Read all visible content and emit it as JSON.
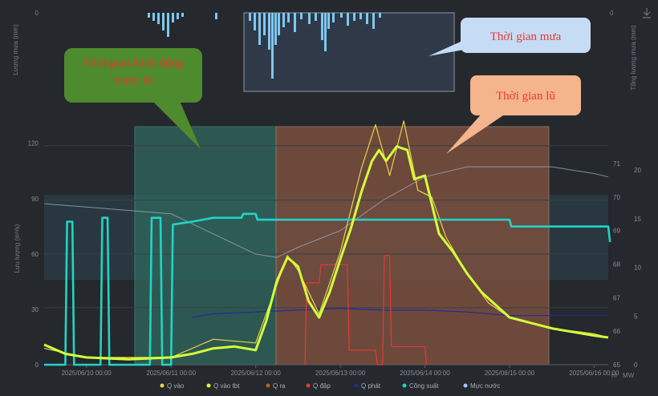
{
  "rain_axis": {
    "left_label": "Lượng mưa (mm)",
    "right_label": "Tổng lượng mưa (mm)",
    "left_ticks": [
      "0"
    ],
    "right_ticks": [
      "0"
    ]
  },
  "flow_axis": {
    "left_label": "Lưu lượng (m³/s)",
    "left_ticks": [
      "0",
      "30",
      "60",
      "90",
      "120"
    ],
    "mid_right_ticks": [
      "65",
      "66",
      "67",
      "68",
      "69",
      "70",
      "71"
    ],
    "right_ticks": [
      "0",
      "5",
      "10",
      "15",
      "20"
    ],
    "mw_label": "MW",
    "m_label": "m"
  },
  "x_ticks": [
    "2025/06/10 00:00",
    "2025/06/11 00:00",
    "2025/06/12 00:00",
    "2025/06/13 00:00",
    "2025/06/14 00:00",
    "2025/06/15 00:00",
    "2025/06/16 00:00"
  ],
  "legend": [
    {
      "label": "Q vào",
      "color": "#e8d44d"
    },
    {
      "label": "Q vào tbt",
      "color": "#d4ff3a"
    },
    {
      "label": "Q ra",
      "color": "#b5651d"
    },
    {
      "label": "Q đập",
      "color": "#e53935"
    },
    {
      "label": "Q phát",
      "color": "#1e2a9b"
    },
    {
      "label": "Công suất",
      "color": "#22d3c5"
    },
    {
      "label": "Mực nước",
      "color": "#a8c8f0"
    }
  ],
  "callouts": {
    "rain": "Thời gian mưa",
    "action": "Thời gian hành động trước lũ",
    "flood": "Thời gian lũ"
  },
  "colors": {
    "background": "#25282c",
    "rain_bars": "#7ec8f0",
    "action_zone": "#2f6b60",
    "flood_zone": "#7a4f3e",
    "callout_action": "#4e8a2e",
    "callout_rain": "#c6dcf4",
    "callout_flood": "#f4b48c"
  },
  "icons": [
    "download-icon"
  ],
  "chart_data": {
    "type": "line",
    "x_unit": "datetime",
    "xlim": [
      "2025/06/09 12:00",
      "2025/06/16 04:00"
    ],
    "ylim_flow": [
      0,
      130
    ],
    "ylim_water_level": [
      65,
      71.5
    ],
    "ylim_power": [
      0,
      21.5
    ],
    "action_period": [
      "2025/06/11 00:00",
      "2025/06/12 02:00"
    ],
    "flood_period": [
      "2025/06/12 02:00",
      "2025/06/15 00:00"
    ],
    "rain_period": [
      "2025/06/12 16:00",
      "2025/06/13 16:00"
    ],
    "series": [
      {
        "name": "Q vào tbt",
        "axis": "flow",
        "values": [
          [
            "2025/06/09 12:00",
            11
          ],
          [
            "2025/06/09 18:00",
            6
          ],
          [
            "2025/06/10 00:00",
            4
          ],
          [
            "2025/06/10 12:00",
            3
          ],
          [
            "2025/06/11 00:00",
            4
          ],
          [
            "2025/06/11 06:00",
            6
          ],
          [
            "2025/06/11 12:00",
            9
          ],
          [
            "2025/06/11 18:00",
            10
          ],
          [
            "2025/06/12 00:00",
            8
          ],
          [
            "2025/06/12 03:00",
            24
          ],
          [
            "2025/06/12 06:00",
            46
          ],
          [
            "2025/06/12 09:00",
            59
          ],
          [
            "2025/06/12 12:00",
            54
          ],
          [
            "2025/06/12 15:00",
            35
          ],
          [
            "2025/06/12 18:00",
            26
          ],
          [
            "2025/06/12 21:00",
            40
          ],
          [
            "2025/06/13 00:00",
            58
          ],
          [
            "2025/06/13 03:00",
            75
          ],
          [
            "2025/06/13 06:00",
            95
          ],
          [
            "2025/06/13 09:00",
            112
          ],
          [
            "2025/06/13 11:00",
            118
          ],
          [
            "2025/06/13 13:00",
            112
          ],
          [
            "2025/06/13 16:00",
            120
          ],
          [
            "2025/06/13 19:00",
            118
          ],
          [
            "2025/06/13 21:00",
            102
          ],
          [
            "2025/06/14 00:00",
            104
          ],
          [
            "2025/06/14 02:00",
            88
          ],
          [
            "2025/06/14 04:00",
            72
          ],
          [
            "2025/06/14 08:00",
            62
          ],
          [
            "2025/06/14 12:00",
            50
          ],
          [
            "2025/06/14 16:00",
            40
          ],
          [
            "2025/06/14 20:00",
            33
          ],
          [
            "2025/06/15 00:00",
            26
          ],
          [
            "2025/06/15 06:00",
            23
          ],
          [
            "2025/06/15 12:00",
            20
          ],
          [
            "2025/06/15 18:00",
            18
          ],
          [
            "2025/06/16 00:00",
            16
          ],
          [
            "2025/06/16 04:00",
            15
          ]
        ]
      },
      {
        "name": "Q vào",
        "axis": "flow",
        "values": [
          [
            "2025/06/09 12:00",
            9
          ],
          [
            "2025/06/10 00:00",
            4
          ],
          [
            "2025/06/11 00:00",
            4
          ],
          [
            "2025/06/11 12:00",
            14
          ],
          [
            "2025/06/12 00:00",
            12
          ],
          [
            "2025/06/12 06:00",
            44
          ],
          [
            "2025/06/12 09:00",
            60
          ],
          [
            "2025/06/12 12:00",
            52
          ],
          [
            "2025/06/12 18:00",
            28
          ],
          [
            "2025/06/13 00:00",
            62
          ],
          [
            "2025/06/13 06:00",
            108
          ],
          [
            "2025/06/13 10:00",
            132
          ],
          [
            "2025/06/13 14:00",
            104
          ],
          [
            "2025/06/13 18:00",
            134
          ],
          [
            "2025/06/13 22:00",
            96
          ],
          [
            "2025/06/14 02:00",
            92
          ],
          [
            "2025/06/14 06:00",
            70
          ],
          [
            "2025/06/14 12:00",
            50
          ],
          [
            "2025/06/14 18:00",
            34
          ],
          [
            "2025/06/15 00:00",
            26
          ],
          [
            "2025/06/15 12:00",
            20
          ],
          [
            "2025/06/16 00:00",
            17
          ],
          [
            "2025/06/16 04:00",
            15
          ]
        ]
      },
      {
        "name": "Q đập",
        "axis": "flow",
        "values": [
          [
            "2025/06/12 14:00",
            0
          ],
          [
            "2025/06/12 14:30",
            45
          ],
          [
            "2025/06/12 18:00",
            45
          ],
          [
            "2025/06/12 18:30",
            55
          ],
          [
            "2025/06/13 02:00",
            55
          ],
          [
            "2025/06/13 02:30",
            8
          ],
          [
            "2025/06/13 10:00",
            8
          ],
          [
            "2025/06/13 10:30",
            0
          ],
          [
            "2025/06/13 12:00",
            0
          ],
          [
            "2025/06/13 12:30",
            60
          ],
          [
            "2025/06/13 14:00",
            60
          ],
          [
            "2025/06/13 14:30",
            10
          ],
          [
            "2025/06/14 00:00",
            10
          ],
          [
            "2025/06/14 00:30",
            0
          ]
        ]
      },
      {
        "name": "Q phát",
        "axis": "flow",
        "values": [
          [
            "2025/06/11 06:00",
            26
          ],
          [
            "2025/06/11 12:00",
            28
          ],
          [
            "2025/06/12 00:00",
            29
          ],
          [
            "2025/06/12 12:00",
            30
          ],
          [
            "2025/06/13 00:00",
            31
          ],
          [
            "2025/06/13 12:00",
            30
          ],
          [
            "2025/06/14 00:00",
            30
          ],
          [
            "2025/06/14 12:00",
            29
          ],
          [
            "2025/06/15 00:00",
            27
          ],
          [
            "2025/06/16 04:00",
            27
          ]
        ]
      },
      {
        "name": "Công suất",
        "axis": "power",
        "values": [
          [
            "2025/06/09 12:00",
            0
          ],
          [
            "2025/06/09 18:00",
            0
          ],
          [
            "2025/06/09 18:30",
            14.7
          ],
          [
            "2025/06/09 20:00",
            14.7
          ],
          [
            "2025/06/09 20:30",
            0
          ],
          [
            "2025/06/10 04:00",
            0
          ],
          [
            "2025/06/10 04:30",
            15.1
          ],
          [
            "2025/06/10 06:00",
            15.1
          ],
          [
            "2025/06/10 06:30",
            0
          ],
          [
            "2025/06/10 18:00",
            0
          ],
          [
            "2025/06/10 18:30",
            15.1
          ],
          [
            "2025/06/10 21:00",
            15.1
          ],
          [
            "2025/06/10 21:30",
            0
          ],
          [
            "2025/06/11 00:00",
            0
          ],
          [
            "2025/06/11 00:30",
            14.4
          ],
          [
            "2025/06/11 06:00",
            14.7
          ],
          [
            "2025/06/11 12:00",
            15.1
          ],
          [
            "2025/06/11 20:00",
            15.1
          ],
          [
            "2025/06/11 20:30",
            15.5
          ],
          [
            "2025/06/12 00:00",
            15.5
          ],
          [
            "2025/06/12 00:30",
            14.9
          ],
          [
            "2025/06/13 00:00",
            14.9
          ],
          [
            "2025/06/14 00:00",
            14.9
          ],
          [
            "2025/06/15 00:00",
            14.9
          ],
          [
            "2025/06/15 00:30",
            14.2
          ],
          [
            "2025/06/16 04:00",
            14.2
          ],
          [
            "2025/06/16 04:30",
            12.6
          ]
        ]
      },
      {
        "name": "Mực nước",
        "axis": "water_level",
        "values": [
          [
            "2025/06/09 12:00",
            69.8
          ],
          [
            "2025/06/10 00:00",
            69.7
          ],
          [
            "2025/06/10 12:00",
            69.6
          ],
          [
            "2025/06/11 00:00",
            69.5
          ],
          [
            "2025/06/11 12:00",
            68.9
          ],
          [
            "2025/06/12 00:00",
            68.3
          ],
          [
            "2025/06/12 06:00",
            68.2
          ],
          [
            "2025/06/12 12:00",
            68.5
          ],
          [
            "2025/06/13 00:00",
            69.0
          ],
          [
            "2025/06/13 12:00",
            69.9
          ],
          [
            "2025/06/14 00:00",
            70.6
          ],
          [
            "2025/06/14 12:00",
            70.9
          ],
          [
            "2025/06/15 00:00",
            70.9
          ],
          [
            "2025/06/15 12:00",
            70.9
          ],
          [
            "2025/06/16 00:00",
            70.7
          ],
          [
            "2025/06/16 04:00",
            70.6
          ]
        ]
      }
    ]
  }
}
